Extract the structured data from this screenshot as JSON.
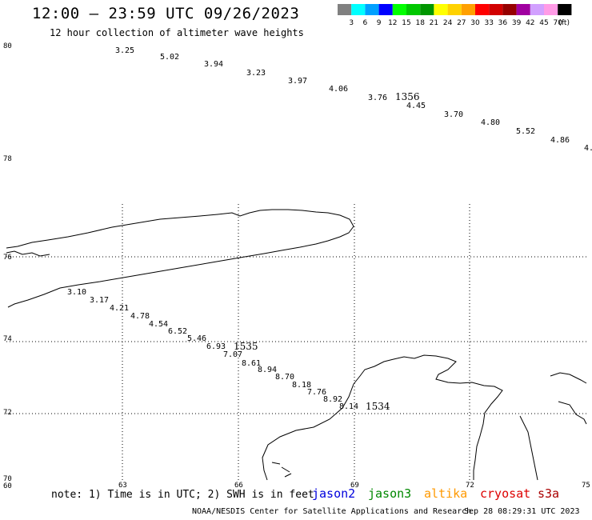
{
  "header": {
    "title": "12:00 – 23:59 UTC 09/26/2023",
    "subtitle": "12 hour collection of altimeter wave heights"
  },
  "color_scale": {
    "labels": [
      "3",
      "6",
      "9",
      "12",
      "15",
      "18",
      "21",
      "24",
      "27",
      "30",
      "33",
      "36",
      "39",
      "42",
      "45",
      "70"
    ],
    "unit": "(ft)",
    "colors": [
      "#808080",
      "#00ffff",
      "#00a0ff",
      "#0000ff",
      "#00ff00",
      "#00c800",
      "#009600",
      "#ffff00",
      "#ffd200",
      "#ffa000",
      "#ff0000",
      "#d20000",
      "#960000",
      "#a000a0",
      "#d2a0ff",
      "#ff9be6",
      "#000000"
    ]
  },
  "map": {
    "lat_labels": [
      "80",
      "78",
      "76",
      "74",
      "72",
      "70"
    ],
    "lon_labels": [
      "60",
      "63",
      "66",
      "69",
      "72",
      "75"
    ]
  },
  "tracks": [
    {
      "time": "1356",
      "values": [
        "3.25",
        "5.02",
        "3.94",
        "3.23",
        "3.97",
        "4.06",
        "3.76",
        "4.45",
        "3.70",
        "4.80",
        "5.52",
        "4.86",
        "4."
      ]
    },
    {
      "time": "1535",
      "values": [
        "3.10",
        "3.17",
        "4.21",
        "4.78",
        "4.54",
        "6.52",
        "5.46",
        "6.93",
        "7.07",
        "8.61",
        "8.94",
        "8.70",
        "8.18",
        "7.76",
        "8.92",
        "8.14"
      ]
    },
    {
      "time": "1534",
      "values": []
    }
  ],
  "footer": {
    "note": "note: 1) Time is in UTC; 2) SWH is in feet",
    "satellites": [
      {
        "name": "jason2",
        "color": "#0000dd"
      },
      {
        "name": "jason3",
        "color": "#008800"
      },
      {
        "name": "altika",
        "color": "#ff9900"
      },
      {
        "name": "cryosat",
        "color": "#dd0000"
      },
      {
        "name": "s3a",
        "color": "#aa0000"
      }
    ],
    "credit": "NOAA/NESDIS Center for Satellite Applications and Research",
    "timestamp": "Sep 28 08:29:31 UTC 2023"
  }
}
